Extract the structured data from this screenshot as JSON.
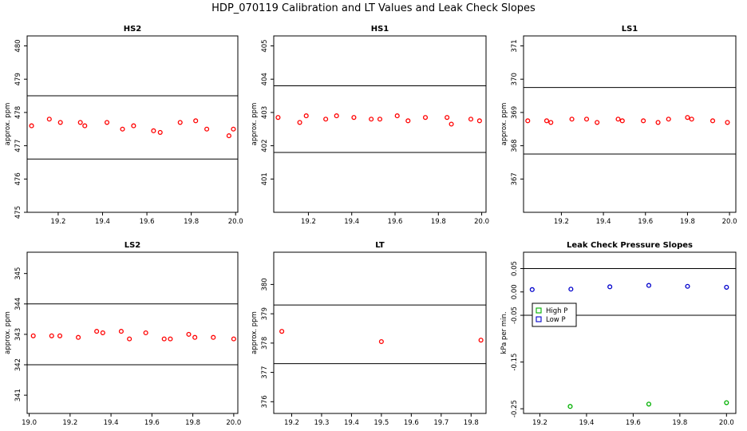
{
  "figure_title": "HDP_070119  Calibration and LT Values and Leak Check Slopes",
  "chart_data": [
    {
      "type": "scatter",
      "title": "HS2",
      "ylabel": "approx. ppm",
      "xlim": [
        19.06,
        20.01
      ],
      "ylim": [
        475.0,
        480.3
      ],
      "xticks": [
        19.2,
        19.4,
        19.6,
        19.8,
        20.0
      ],
      "xtick_labels": [
        "19.2",
        "19.4",
        "19.6",
        "19.8",
        "20.0"
      ],
      "yticks": [
        475,
        476,
        477,
        478,
        479,
        480
      ],
      "ytick_labels": [
        "475",
        "476",
        "477",
        "478",
        "479",
        "480"
      ],
      "hlines": [
        478.5,
        476.6
      ],
      "series": [
        {
          "name": "HS2",
          "color": "#ff0000",
          "x": [
            19.08,
            19.16,
            19.21,
            19.3,
            19.32,
            19.42,
            19.49,
            19.54,
            19.63,
            19.66,
            19.75,
            19.82,
            19.87,
            19.97,
            19.99
          ],
          "y": [
            477.6,
            477.8,
            477.7,
            477.7,
            477.6,
            477.7,
            477.5,
            477.6,
            477.45,
            477.4,
            477.7,
            477.75,
            477.5,
            477.3,
            477.5
          ]
        }
      ]
    },
    {
      "type": "scatter",
      "title": "HS1",
      "ylabel": "approx. ppm",
      "xlim": [
        19.04,
        20.02
      ],
      "ylim": [
        400.0,
        405.3
      ],
      "xticks": [
        19.2,
        19.4,
        19.6,
        19.8,
        20.0
      ],
      "xtick_labels": [
        "19.2",
        "19.4",
        "19.6",
        "19.8",
        "20.0"
      ],
      "yticks": [
        401,
        402,
        403,
        404,
        405
      ],
      "ytick_labels": [
        "401",
        "402",
        "403",
        "404",
        "405"
      ],
      "hlines": [
        403.8,
        401.8
      ],
      "series": [
        {
          "name": "HS1",
          "color": "#ff0000",
          "x": [
            19.06,
            19.16,
            19.19,
            19.28,
            19.33,
            19.41,
            19.49,
            19.53,
            19.61,
            19.66,
            19.74,
            19.84,
            19.86,
            19.95,
            19.99
          ],
          "y": [
            402.85,
            402.7,
            402.9,
            402.8,
            402.9,
            402.85,
            402.8,
            402.8,
            402.9,
            402.75,
            402.85,
            402.85,
            402.65,
            402.8,
            402.75
          ]
        }
      ]
    },
    {
      "type": "scatter",
      "title": "LS1",
      "ylabel": "approx. ppm",
      "xlim": [
        19.02,
        20.03
      ],
      "ylim": [
        366.0,
        371.3
      ],
      "xticks": [
        19.2,
        19.4,
        19.6,
        19.8,
        20.0
      ],
      "xtick_labels": [
        "19.2",
        "19.4",
        "19.6",
        "19.8",
        "20.0"
      ],
      "yticks": [
        367,
        368,
        369,
        370,
        371
      ],
      "ytick_labels": [
        "367",
        "368",
        "369",
        "370",
        "371"
      ],
      "hlines": [
        369.75,
        367.75
      ],
      "series": [
        {
          "name": "LS1",
          "color": "#ff0000",
          "x": [
            19.04,
            19.13,
            19.15,
            19.25,
            19.32,
            19.37,
            19.47,
            19.49,
            19.59,
            19.66,
            19.71,
            19.8,
            19.82,
            19.92,
            19.99
          ],
          "y": [
            368.75,
            368.75,
            368.7,
            368.8,
            368.8,
            368.7,
            368.8,
            368.75,
            368.75,
            368.7,
            368.8,
            368.85,
            368.8,
            368.75,
            368.7
          ]
        }
      ]
    },
    {
      "type": "scatter",
      "title": "LS2",
      "ylabel": "approx. ppm",
      "xlim": [
        18.99,
        20.02
      ],
      "ylim": [
        340.4,
        345.7
      ],
      "xticks": [
        19.0,
        19.2,
        19.4,
        19.6,
        19.8,
        20.0
      ],
      "xtick_labels": [
        "19.0",
        "19.2",
        "19.4",
        "19.6",
        "19.8",
        "20.0"
      ],
      "yticks": [
        341,
        342,
        343,
        344,
        345
      ],
      "ytick_labels": [
        "341",
        "342",
        "343",
        "344",
        "345"
      ],
      "hlines": [
        344.0,
        342.0
      ],
      "series": [
        {
          "name": "LS2",
          "color": "#ff0000",
          "x": [
            19.02,
            19.11,
            19.15,
            19.24,
            19.33,
            19.36,
            19.45,
            19.49,
            19.57,
            19.66,
            19.69,
            19.78,
            19.81,
            19.9,
            20.0
          ],
          "y": [
            342.95,
            342.95,
            342.95,
            342.9,
            343.1,
            343.05,
            343.1,
            342.85,
            343.05,
            342.85,
            342.85,
            343.0,
            342.9,
            342.9,
            342.85
          ]
        }
      ]
    },
    {
      "type": "scatter",
      "title": "LT",
      "ylabel": "approx. ppm",
      "xlim": [
        19.14,
        19.85
      ],
      "ylim": [
        375.6,
        381.1
      ],
      "xticks": [
        19.2,
        19.3,
        19.4,
        19.5,
        19.6,
        19.7,
        19.8
      ],
      "xtick_labels": [
        "19.2",
        "19.3",
        "19.4",
        "19.5",
        "19.6",
        "19.7",
        "19.8"
      ],
      "yticks": [
        376,
        377,
        378,
        379,
        380
      ],
      "ytick_labels": [
        "376",
        "377",
        "378",
        "379",
        "380"
      ],
      "hlines": [
        379.3,
        377.3
      ],
      "series": [
        {
          "name": "LT",
          "color": "#ff0000",
          "x": [
            19.167,
            19.5,
            19.833
          ],
          "y": [
            378.4,
            378.05,
            378.1
          ]
        }
      ]
    },
    {
      "type": "scatter",
      "title": "Leak Check Pressure Slopes",
      "ylabel": "kPa per min.",
      "xlim": [
        19.13,
        20.04
      ],
      "ylim": [
        -0.26,
        0.085
      ],
      "xticks": [
        19.2,
        19.4,
        19.6,
        19.8,
        20.0
      ],
      "xtick_labels": [
        "19.2",
        "19.4",
        "19.6",
        "19.8",
        "20.0"
      ],
      "yticks": [
        -0.25,
        -0.15,
        -0.05,
        0.05
      ],
      "ytick_labels": [
        "-0.25",
        "-0.15",
        "-0.05",
        "0.05"
      ],
      "yticks_minor": [
        0.0
      ],
      "ytick_labels_minor": [
        "0.00"
      ],
      "hlines": [
        0.05,
        -0.05
      ],
      "legend": {
        "location": "left-middle",
        "entries": [
          "High P",
          "Low P"
        ]
      },
      "series": [
        {
          "name": "High P",
          "color": "#00b000",
          "x": [
            19.33,
            19.667,
            20.0
          ],
          "y": [
            -0.245,
            -0.24,
            -0.237
          ]
        },
        {
          "name": "Low P",
          "color": "#0000cc",
          "x": [
            19.167,
            19.333,
            19.5,
            19.667,
            19.833,
            20.0
          ],
          "y": [
            0.005,
            0.006,
            0.011,
            0.014,
            0.012,
            0.01
          ]
        }
      ]
    }
  ]
}
